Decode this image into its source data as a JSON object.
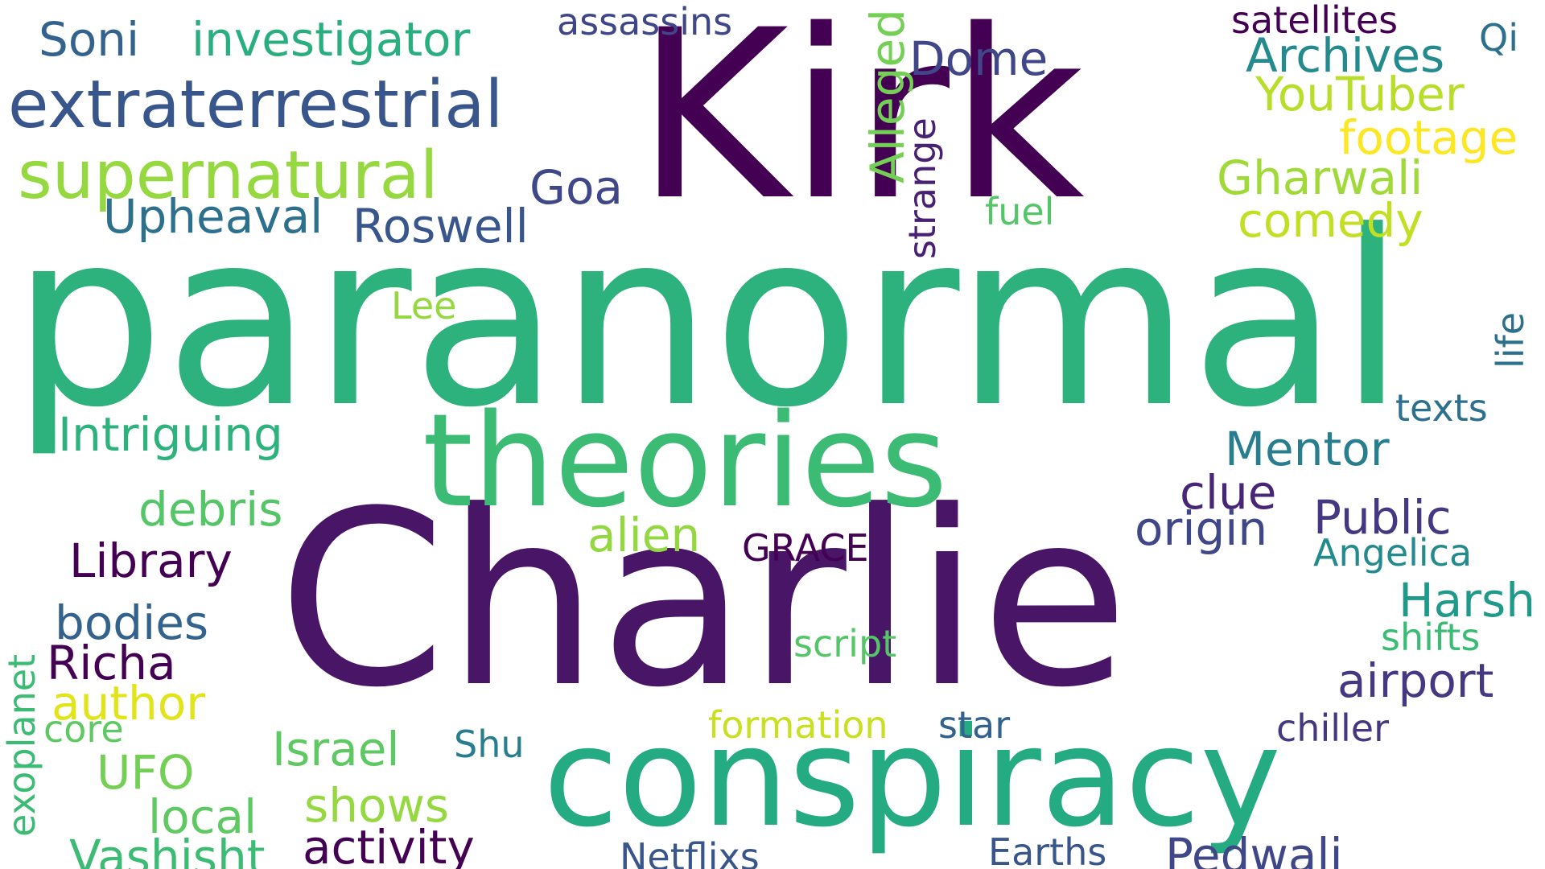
{
  "words": [
    {
      "text": "Kirk",
      "color": "#440154"
    },
    {
      "text": "paranormal",
      "color": "#2db27d"
    },
    {
      "text": "Charlie",
      "color": "#481567"
    },
    {
      "text": "theories",
      "color": "#3cbb75"
    },
    {
      "text": "conspiracy",
      "color": "#25ab82"
    },
    {
      "text": "extraterrestrial",
      "color": "#39568c"
    },
    {
      "text": "supernatural",
      "color": "#95d840"
    },
    {
      "text": "investigator",
      "color": "#29af7f"
    },
    {
      "text": "Soni",
      "color": "#33638d"
    },
    {
      "text": "assassins",
      "color": "#3f4788"
    },
    {
      "text": "satellites",
      "color": "#440154"
    },
    {
      "text": "Qi",
      "color": "#2d708e"
    },
    {
      "text": "Archives",
      "color": "#238a8d"
    },
    {
      "text": "YouTuber",
      "color": "#b8de29"
    },
    {
      "text": "footage",
      "color": "#fde725"
    },
    {
      "text": "Gharwali",
      "color": "#a0da39"
    },
    {
      "text": "comedy",
      "color": "#c2df23"
    },
    {
      "text": "Dome",
      "color": "#404688"
    },
    {
      "text": "Alleged",
      "color": "#73d055"
    },
    {
      "text": "strange",
      "color": "#482173"
    },
    {
      "text": "fuel",
      "color": "#55c667"
    },
    {
      "text": "Goa",
      "color": "#3f4788"
    },
    {
      "text": "Roswell",
      "color": "#39568c"
    },
    {
      "text": "Upheaval",
      "color": "#2d708e"
    },
    {
      "text": "Lee",
      "color": "#95d840"
    },
    {
      "text": "life",
      "color": "#2d708e"
    },
    {
      "text": "texts",
      "color": "#2d708e"
    },
    {
      "text": "Intriguing",
      "color": "#2db27d"
    },
    {
      "text": "Mentor",
      "color": "#287d8e"
    },
    {
      "text": "clue",
      "color": "#482677"
    },
    {
      "text": "debris",
      "color": "#55c667"
    },
    {
      "text": "Public",
      "color": "#453781"
    },
    {
      "text": "origin",
      "color": "#3f4788"
    },
    {
      "text": "alien",
      "color": "#94d841"
    },
    {
      "text": "GRACE",
      "color": "#440154"
    },
    {
      "text": "Library",
      "color": "#440154"
    },
    {
      "text": "Angelica",
      "color": "#238a8d"
    },
    {
      "text": "Harsh",
      "color": "#1f9a8a"
    },
    {
      "text": "shifts",
      "color": "#3cbb75"
    },
    {
      "text": "bodies",
      "color": "#33638d"
    },
    {
      "text": "Richa",
      "color": "#440154"
    },
    {
      "text": "script",
      "color": "#55c667"
    },
    {
      "text": "airport",
      "color": "#453781"
    },
    {
      "text": "author",
      "color": "#e1e41a"
    },
    {
      "text": "core",
      "color": "#5ec962"
    },
    {
      "text": "exoplanet",
      "color": "#3cbb75"
    },
    {
      "text": "formation",
      "color": "#c8e020"
    },
    {
      "text": "star",
      "color": "#33638d"
    },
    {
      "text": "chiller",
      "color": "#453781"
    },
    {
      "text": "Israel",
      "color": "#5ec962"
    },
    {
      "text": "Shu",
      "color": "#287d8e"
    },
    {
      "text": "UFO",
      "color": "#73d055"
    },
    {
      "text": "shows",
      "color": "#95d840"
    },
    {
      "text": "local",
      "color": "#5ec962"
    },
    {
      "text": "Vashisht",
      "color": "#3cbb75"
    },
    {
      "text": "activity",
      "color": "#440154"
    },
    {
      "text": "Netflixs",
      "color": "#39568c"
    },
    {
      "text": "Earths",
      "color": "#39568c"
    },
    {
      "text": "Pedwali",
      "color": "#3f4788"
    }
  ]
}
